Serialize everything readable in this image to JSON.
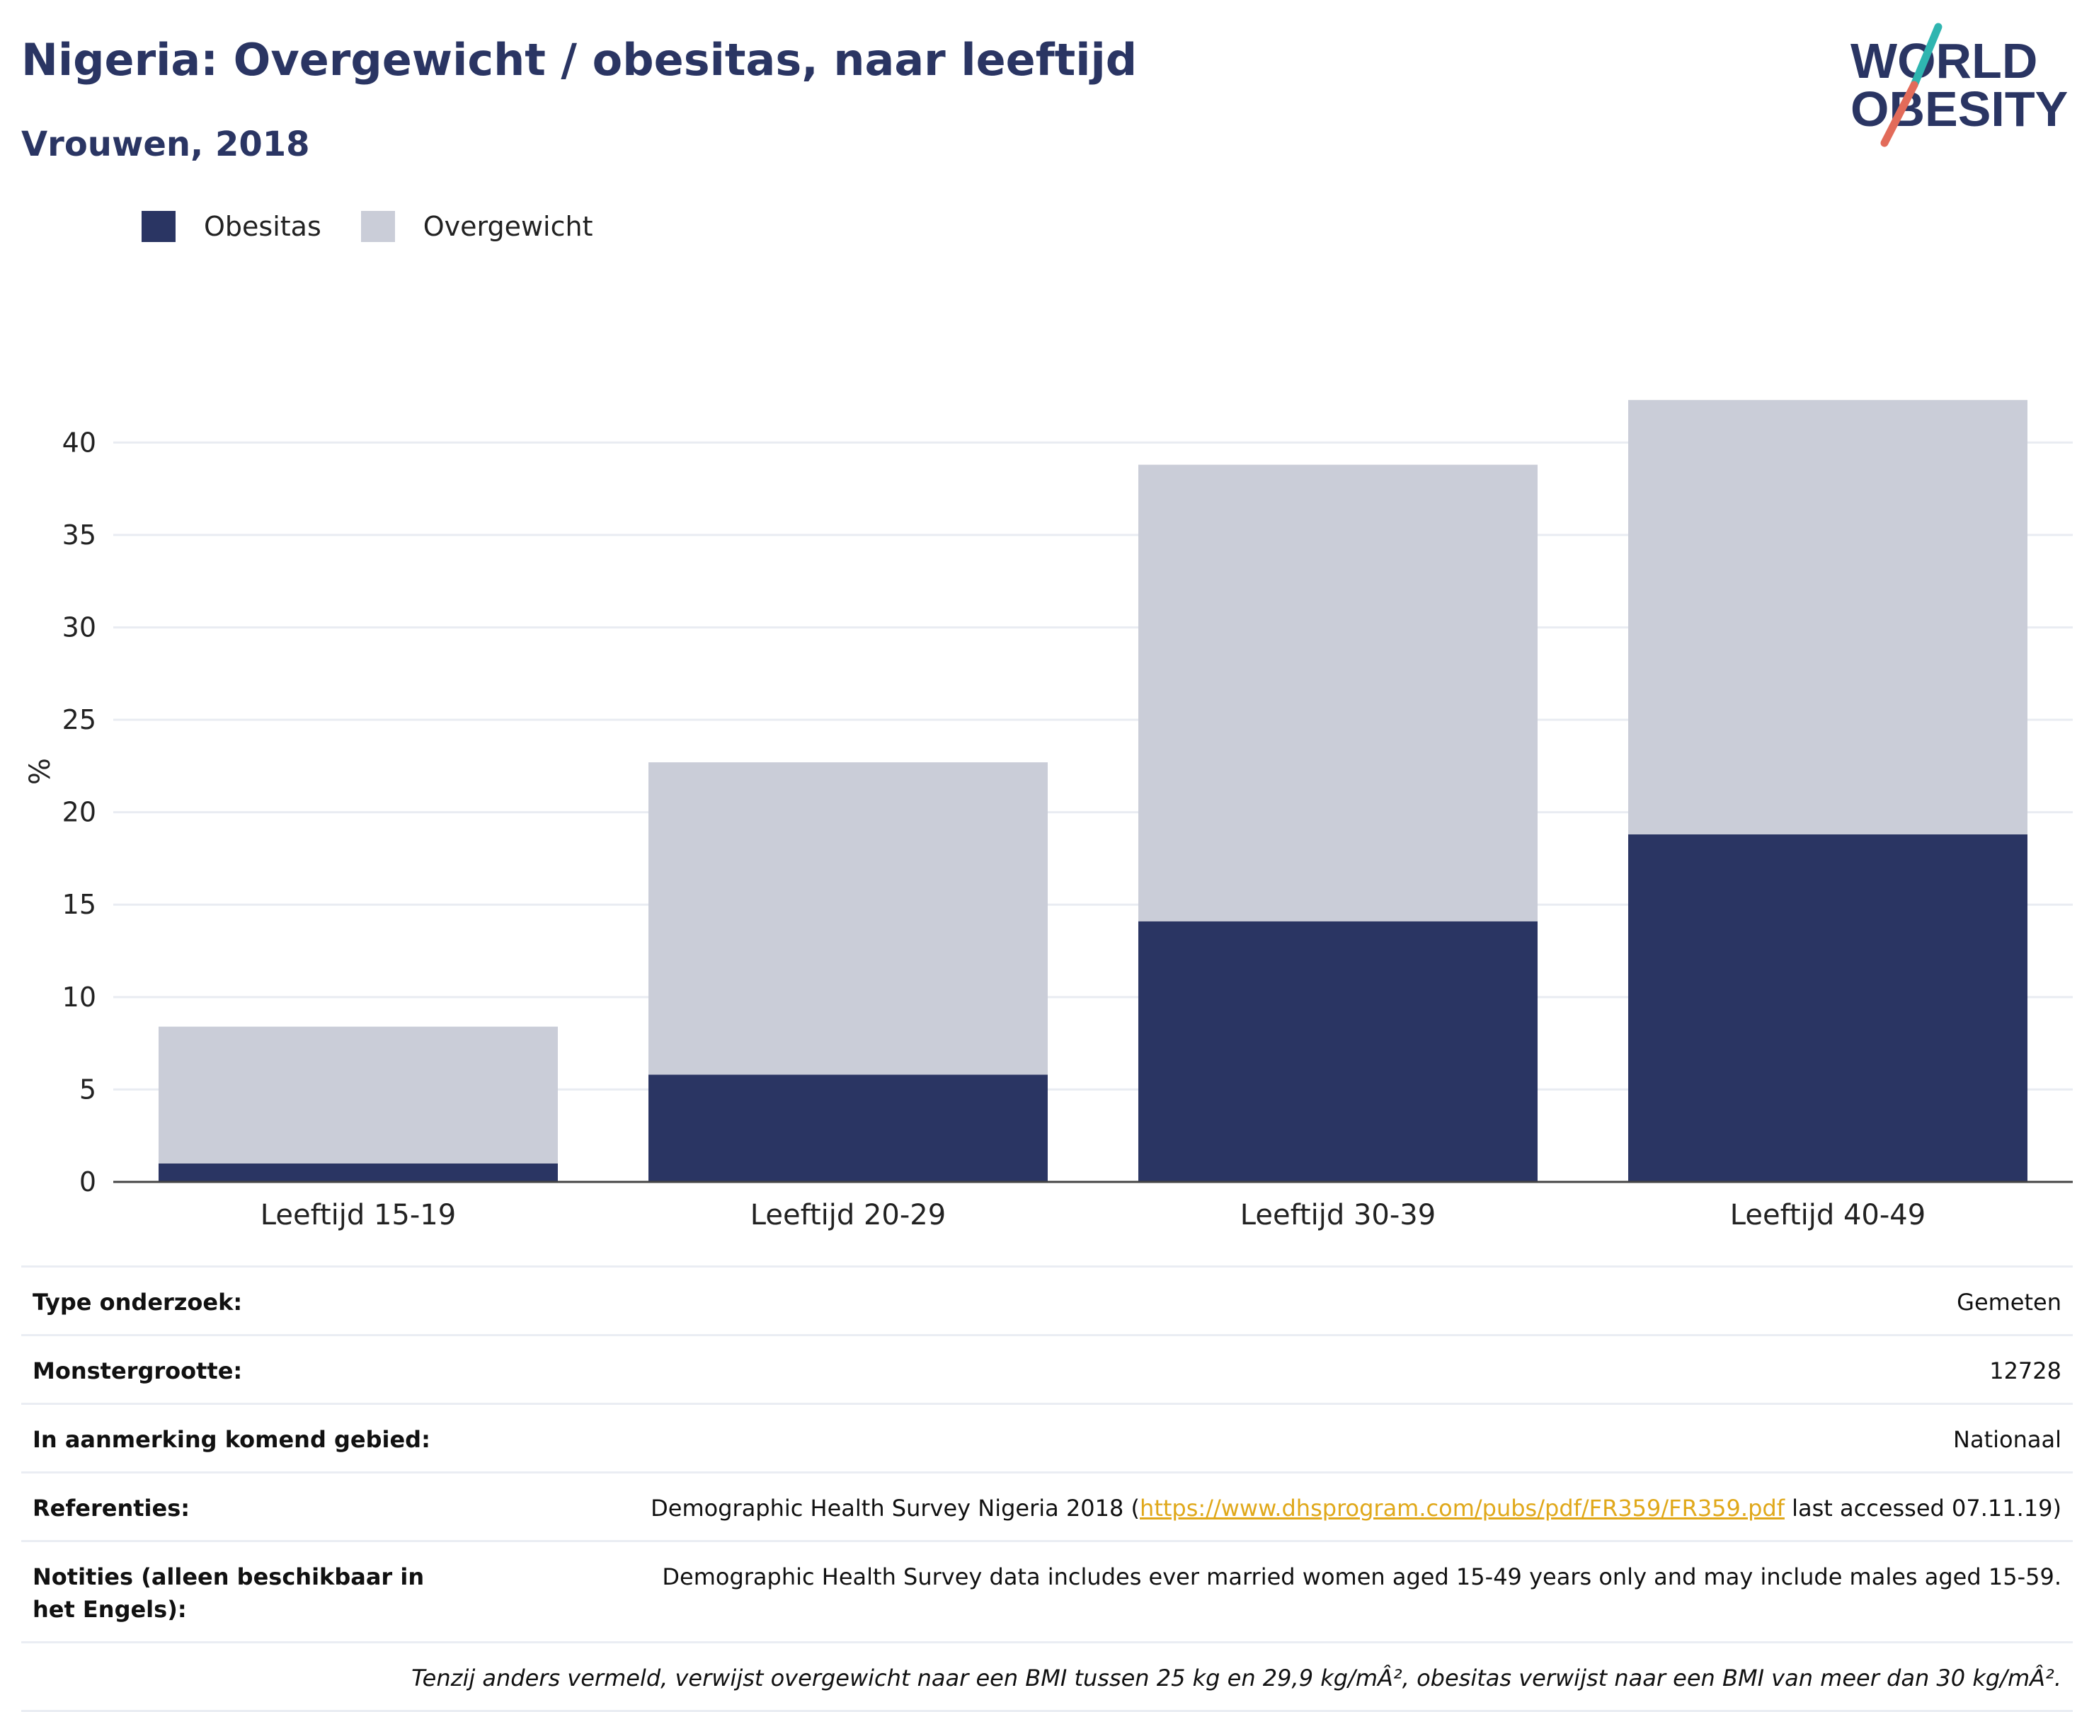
{
  "title": "Nigeria: Overgewicht / obesitas, naar leeftijd",
  "subtitle": "Vrouwen, 2018",
  "logo": {
    "line1": "WORLD",
    "line2": "OBESITY"
  },
  "colors": {
    "obesitas": "#2a3563",
    "overgewicht": "#cacdd8",
    "title": "#2a3563",
    "link": "#e0a81a"
  },
  "legend": [
    {
      "label": "Obesitas",
      "color": "#2a3563"
    },
    {
      "label": "Overgewicht",
      "color": "#cacdd8"
    }
  ],
  "chart_data": {
    "type": "bar",
    "stacked": true,
    "categories": [
      "Leeftijd 15-19",
      "Leeftijd 20-29",
      "Leeftijd 30-39",
      "Leeftijd 40-49"
    ],
    "series": [
      {
        "name": "Obesitas",
        "values": [
          1.0,
          5.8,
          14.1,
          18.8
        ]
      },
      {
        "name": "Overgewicht",
        "values": [
          7.4,
          16.9,
          24.7,
          23.5
        ]
      }
    ],
    "ylabel": "%",
    "ylim": [
      0,
      42.5
    ],
    "yticks": [
      0,
      5,
      10,
      15,
      20,
      25,
      30,
      35,
      40
    ],
    "grid": true,
    "legend_position": "top-left"
  },
  "info": {
    "rows": [
      {
        "label": "Type onderzoek:",
        "value": "Gemeten"
      },
      {
        "label": "Monstergrootte:",
        "value": "12728"
      },
      {
        "label": "In aanmerking komend gebied:",
        "value": "Nationaal"
      }
    ],
    "references": {
      "label": "Referenties:",
      "prefix": "Demographic Health Survey Nigeria 2018 (",
      "link": "https://www.dhsprogram.com/pubs/pdf/FR359/FR359.pdf",
      "suffix": " last accessed 07.11.19)"
    },
    "notes": {
      "label": "Notities (alleen beschikbaar in het Engels):",
      "value": "Demographic Health Survey data includes ever married women aged 15-49 years only and may include males aged 15-59."
    },
    "footnote": "Tenzij anders vermeld, verwijst overgewicht naar een BMI tussen 25 kg en 29,9 kg/mÂ², obesitas verwijst naar een BMI van meer dan 30 kg/mÂ²."
  }
}
